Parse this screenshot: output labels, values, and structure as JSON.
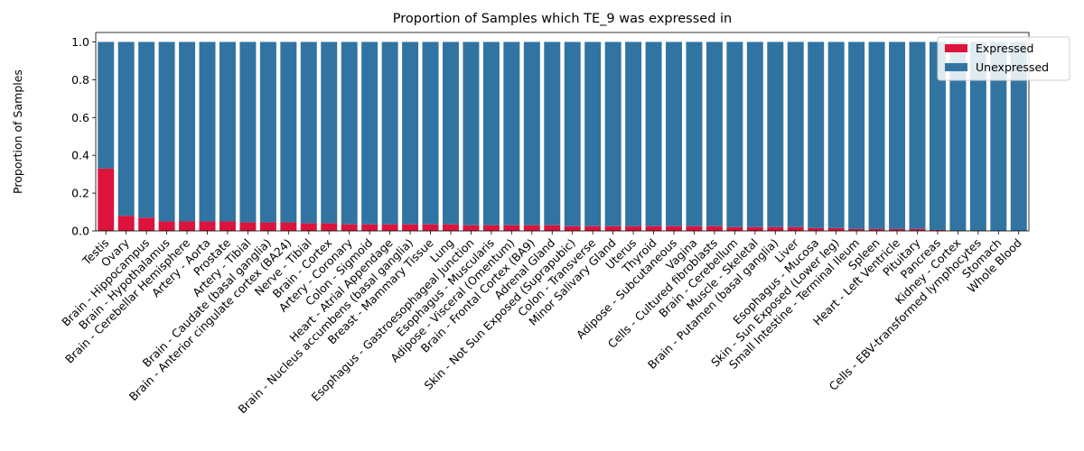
{
  "chart_data": {
    "type": "bar",
    "stacked": true,
    "title": "Proportion of Samples which TE_9 was expressed in",
    "xlabel": "",
    "ylabel": "Proportion of Samples",
    "ylim": [
      0,
      1.05
    ],
    "yticks": [
      "0.0",
      "0.2",
      "0.4",
      "0.6",
      "0.8",
      "1.0"
    ],
    "legend_position": "top-right",
    "grid": false,
    "categories": [
      "Testis",
      "Ovary",
      "Brain - Hippocampus",
      "Brain - Hypothalamus",
      "Brain - Cerebellar Hemisphere",
      "Artery - Aorta",
      "Prostate",
      "Artery - Tibial",
      "Brain - Caudate (basal ganglia)",
      "Brain - Anterior cingulate cortex (BA24)",
      "Nerve - Tibial",
      "Brain - Cortex",
      "Artery - Coronary",
      "Colon - Sigmoid",
      "Heart - Atrial Appendage",
      "Brain - Nucleus accumbens (basal ganglia)",
      "Breast - Mammary Tissue",
      "Lung",
      "Esophagus - Gastroesophageal Junction",
      "Esophagus - Muscularis",
      "Adipose - Visceral (Omentum)",
      "Brain - Frontal Cortex (BA9)",
      "Adrenal Gland",
      "Skin - Not Sun Exposed (Suprapubic)",
      "Colon - Transverse",
      "Minor Salivary Gland",
      "Uterus",
      "Thyroid",
      "Adipose - Subcutaneous",
      "Vagina",
      "Cells - Cultured fibroblasts",
      "Brain - Cerebellum",
      "Muscle - Skeletal",
      "Brain - Putamen (basal ganglia)",
      "Liver",
      "Esophagus - Mucosa",
      "Skin - Sun Exposed (Lower leg)",
      "Small Intestine - Terminal Ileum",
      "Spleen",
      "Heart - Left Ventricle",
      "Pituitary",
      "Pancreas",
      "Kidney - Cortex",
      "Cells - EBV-transformed lymphocytes",
      "Stomach",
      "Whole Blood"
    ],
    "series": [
      {
        "name": "Expressed",
        "color": "#dc143c",
        "values": [
          0.33,
          0.08,
          0.07,
          0.05,
          0.05,
          0.05,
          0.05,
          0.045,
          0.045,
          0.045,
          0.04,
          0.04,
          0.035,
          0.035,
          0.035,
          0.035,
          0.035,
          0.035,
          0.03,
          0.03,
          0.03,
          0.03,
          0.03,
          0.025,
          0.025,
          0.025,
          0.025,
          0.025,
          0.025,
          0.025,
          0.025,
          0.02,
          0.02,
          0.02,
          0.02,
          0.015,
          0.015,
          0.01,
          0.01,
          0.01,
          0.01,
          0.005,
          0.0,
          0.0,
          0.0,
          0.0
        ]
      },
      {
        "name": "Unexpressed",
        "color": "#3274a1",
        "values": [
          0.67,
          0.92,
          0.93,
          0.95,
          0.95,
          0.95,
          0.95,
          0.955,
          0.955,
          0.955,
          0.96,
          0.96,
          0.965,
          0.965,
          0.965,
          0.965,
          0.965,
          0.965,
          0.97,
          0.97,
          0.97,
          0.97,
          0.97,
          0.975,
          0.975,
          0.975,
          0.975,
          0.975,
          0.975,
          0.975,
          0.975,
          0.98,
          0.98,
          0.98,
          0.98,
          0.985,
          0.985,
          0.99,
          0.99,
          0.99,
          0.99,
          0.995,
          1.0,
          1.0,
          1.0,
          1.0
        ]
      }
    ]
  }
}
